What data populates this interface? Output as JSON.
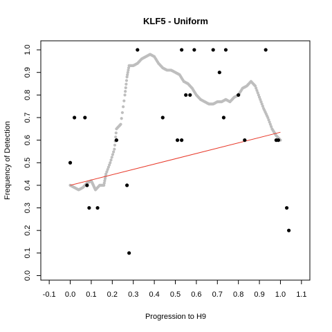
{
  "chart_data": {
    "type": "scatter",
    "title": "KLF5 - Uniform",
    "xlabel": "Progression to H9",
    "ylabel": "Frequency of Detection",
    "xlim": [
      -0.14,
      1.14
    ],
    "ylim": [
      -0.02,
      1.04
    ],
    "x_ticks": [
      "-0.1",
      "0.0",
      "0.1",
      "0.2",
      "0.3",
      "0.4",
      "0.5",
      "0.6",
      "0.7",
      "0.8",
      "0.9",
      "1.0",
      "1.1"
    ],
    "y_ticks": [
      "0.0",
      "0.1",
      "0.2",
      "0.3",
      "0.4",
      "0.5",
      "0.6",
      "0.7",
      "0.8",
      "0.9",
      "1.0"
    ],
    "grid": false,
    "colors": {
      "points": "#000000",
      "smooth": "#bebebe",
      "fit": "#e8392a"
    },
    "series": [
      {
        "kind": "points",
        "x": [
          0.0,
          0.02,
          0.07,
          0.08,
          0.09,
          0.13,
          0.22,
          0.27,
          0.28,
          0.32,
          0.44,
          0.51,
          0.53,
          0.53,
          0.55,
          0.57,
          0.59,
          0.68,
          0.71,
          0.73,
          0.74,
          0.8,
          0.83,
          0.93,
          0.98,
          0.99,
          1.03,
          1.04
        ],
        "y": [
          0.5,
          0.7,
          0.7,
          0.4,
          0.3,
          0.3,
          0.6,
          0.4,
          0.1,
          1.0,
          0.7,
          0.6,
          0.6,
          1.0,
          0.8,
          0.8,
          1.0,
          1.0,
          0.9,
          0.7,
          1.0,
          0.8,
          0.6,
          1.0,
          0.6,
          0.6,
          0.3,
          0.2
        ]
      },
      {
        "kind": "smooth",
        "x": [
          0.0,
          0.02,
          0.04,
          0.06,
          0.08,
          0.1,
          0.11,
          0.12,
          0.14,
          0.16,
          0.17,
          0.19,
          0.21,
          0.22,
          0.24,
          0.26,
          0.27,
          0.28,
          0.3,
          0.32,
          0.34,
          0.36,
          0.38,
          0.4,
          0.42,
          0.44,
          0.46,
          0.48,
          0.5,
          0.52,
          0.54,
          0.56,
          0.58,
          0.6,
          0.62,
          0.64,
          0.66,
          0.68,
          0.7,
          0.72,
          0.74,
          0.76,
          0.78,
          0.8,
          0.82,
          0.84,
          0.86,
          0.88,
          0.9,
          0.92,
          0.94,
          0.96,
          0.98,
          1.0
        ],
        "y": [
          0.4,
          0.39,
          0.38,
          0.39,
          0.41,
          0.42,
          0.4,
          0.38,
          0.4,
          0.4,
          0.45,
          0.5,
          0.56,
          0.65,
          0.67,
          0.8,
          0.88,
          0.93,
          0.93,
          0.94,
          0.96,
          0.97,
          0.98,
          0.97,
          0.94,
          0.92,
          0.91,
          0.91,
          0.9,
          0.89,
          0.86,
          0.85,
          0.83,
          0.8,
          0.78,
          0.77,
          0.76,
          0.76,
          0.77,
          0.77,
          0.78,
          0.77,
          0.79,
          0.8,
          0.83,
          0.84,
          0.86,
          0.84,
          0.79,
          0.74,
          0.7,
          0.65,
          0.62,
          0.6
        ]
      },
      {
        "kind": "fit",
        "x": [
          0.0,
          1.0
        ],
        "y": [
          0.4,
          0.635
        ]
      }
    ]
  }
}
